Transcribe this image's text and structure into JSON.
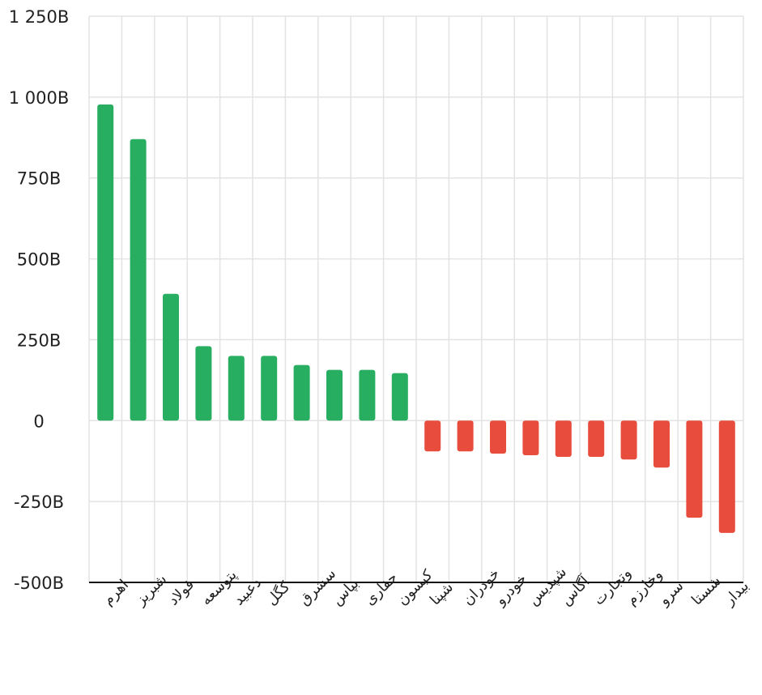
{
  "chart_data": {
    "type": "bar",
    "categories": [
      "اهرم",
      "شبریز",
      "فولاد",
      "پتوسعه",
      "دعبید",
      "کگل",
      "سشرق",
      "بپاس",
      "حفاری",
      "کیسون",
      "شپنا",
      "خودران",
      "خودرو",
      "شپدیس",
      "آگاس",
      "وتجارت",
      "وخارزم",
      "سرو",
      "شستا",
      "بیدار"
    ],
    "values": [
      977,
      870,
      392,
      230,
      200,
      200,
      172,
      157,
      157,
      147,
      -95,
      -95,
      -102,
      -107,
      -112,
      -112,
      -120,
      -145,
      -300,
      -347
    ],
    "unit": "B",
    "ylim": [
      -500,
      1250
    ],
    "yticks": [
      {
        "value": 1250,
        "label": "1 250B"
      },
      {
        "value": 1000,
        "label": "1 000B"
      },
      {
        "value": 750,
        "label": "750B"
      },
      {
        "value": 500,
        "label": "500B"
      },
      {
        "value": 250,
        "label": "250B"
      },
      {
        "value": 0,
        "label": "0"
      },
      {
        "value": -250,
        "label": "-250B"
      },
      {
        "value": -500,
        "label": "-500B"
      }
    ],
    "grid": true,
    "colors": {
      "positive": "#27ae60",
      "negative": "#e74c3c",
      "grid": "#e3e3e3"
    },
    "title": "",
    "xlabel": "",
    "ylabel": ""
  }
}
